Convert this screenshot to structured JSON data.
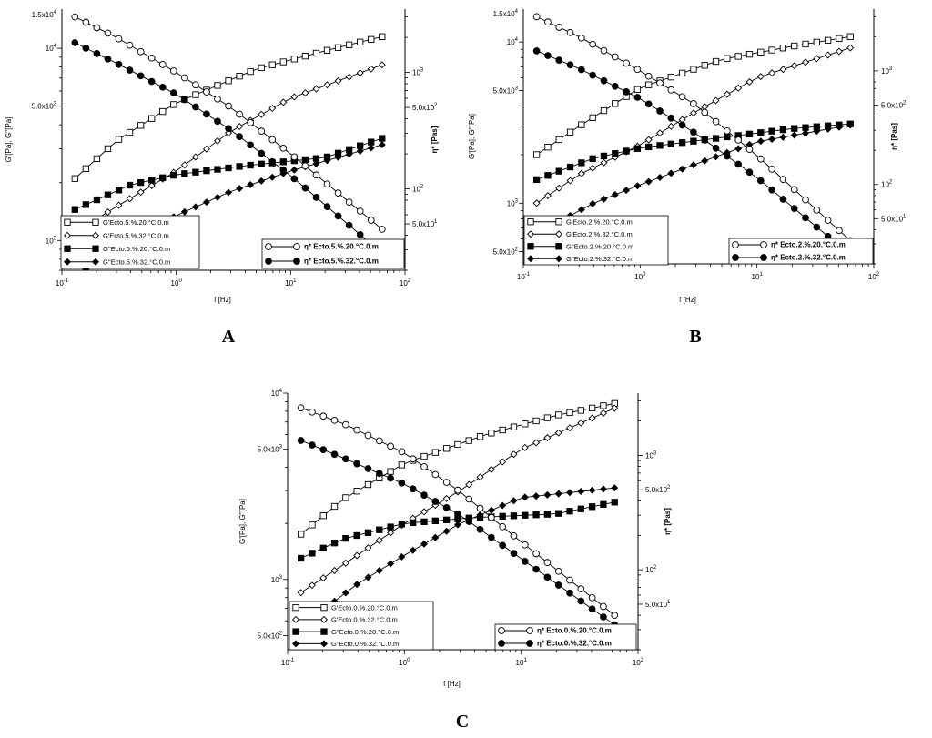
{
  "chart_data": [
    {
      "type": "line",
      "panel_label": "A",
      "xlabel": "f [Hz]",
      "ylabel": "G'[Pa], G''[Pa]",
      "y2label": "η* [Pas]",
      "xscale": "log",
      "yscale": "log",
      "y2scale": "log",
      "xlim": [
        0.1,
        100
      ],
      "ylim": [
        700,
        16000
      ],
      "y2lim": [
        20,
        3500
      ],
      "xticks": [
        {
          "base": "10",
          "exp": "-1",
          "value": 0.1
        },
        {
          "base": "10",
          "exp": "0",
          "value": 1
        },
        {
          "base": "10",
          "exp": "1",
          "value": 10
        },
        {
          "base": "10",
          "exp": "2",
          "value": 100
        }
      ],
      "yticks": [
        {
          "base": "1.5x10",
          "exp": "4",
          "value": 15000
        },
        {
          "base": "10",
          "exp": "4",
          "value": 10000
        },
        {
          "base": "5.0x10",
          "exp": "3",
          "value": 5000
        },
        {
          "base": "10",
          "exp": "3",
          "value": 1000
        }
      ],
      "y2ticks": [
        {
          "base": "10",
          "exp": "3",
          "value": 1000
        },
        {
          "base": "5.0x10",
          "exp": "2",
          "value": 500
        },
        {
          "base": "10",
          "exp": "2",
          "value": 100
        },
        {
          "base": "5.0x10",
          "exp": "1",
          "value": 50
        }
      ],
      "legend_left": [
        "G'Ecto.5.%.20.°C.0.m",
        "G'Ecto.5.%.32.°C.0.m",
        "G''Ecto.5.%.20.°C.0.m",
        "G''Ecto.5.%.32.°C.0.m"
      ],
      "legend_right": [
        "η* Ecto.5.%.20.°C.0.m",
        "η* Ecto.5.%.32.°C.0.m"
      ],
      "legend_left_position": "bottom-left",
      "legend_right_position": "bottom-right",
      "grid": false,
      "series": [
        {
          "name": "G'Ecto.5.%.20.°C.0.m",
          "axis": "left",
          "marker": "square-open",
          "f_range": [
            0.13,
            63
          ],
          "points": 29,
          "path": [
            [
              0.13,
              2100
            ],
            [
              0.3,
              3300
            ],
            [
              1,
              5200
            ],
            [
              5,
              7800
            ],
            [
              20,
              9700
            ],
            [
              63,
              11500
            ]
          ]
        },
        {
          "name": "G'Ecto.5.%.32.°C.0.m",
          "axis": "left",
          "marker": "diamond-open",
          "f_range": [
            0.13,
            63
          ],
          "points": 29,
          "path": [
            [
              0.13,
              1100
            ],
            [
              0.3,
              1500
            ],
            [
              1,
              2300
            ],
            [
              3,
              3700
            ],
            [
              10,
              5500
            ],
            [
              63,
              8200
            ]
          ]
        },
        {
          "name": "G''Ecto.5.%.20.°C.0.m",
          "axis": "left",
          "marker": "square-filled",
          "f_range": [
            0.13,
            63
          ],
          "points": 29,
          "path": [
            [
              0.13,
              1450
            ],
            [
              0.4,
              1950
            ],
            [
              1,
              2200
            ],
            [
              4,
              2450
            ],
            [
              20,
              2700
            ],
            [
              63,
              3400
            ]
          ]
        },
        {
          "name": "G''Ecto.5.%.32.°C.0.m",
          "axis": "left",
          "marker": "diamond-filled",
          "f_range": [
            0.13,
            63
          ],
          "points": 29,
          "path": [
            [
              0.13,
              650
            ],
            [
              0.4,
              1000
            ],
            [
              1,
              1350
            ],
            [
              3,
              1800
            ],
            [
              10,
              2300
            ],
            [
              63,
              3150
            ]
          ]
        },
        {
          "name": "η* Ecto.5.%.20.°C.0.m",
          "axis": "right",
          "marker": "circle-open",
          "f_range": [
            0.13,
            63
          ],
          "points": 29,
          "path": [
            [
              0.13,
              3000
            ],
            [
              0.3,
              2000
            ],
            [
              1,
              1000
            ],
            [
              3,
              500
            ],
            [
              10,
              200
            ],
            [
              63,
              45
            ]
          ]
        },
        {
          "name": "η* Ecto.5.%.32.°C.0.m",
          "axis": "right",
          "marker": "circle-filled",
          "f_range": [
            0.13,
            63
          ],
          "points": 29,
          "path": [
            [
              0.13,
              1800
            ],
            [
              0.3,
              1200
            ],
            [
              1,
              650
            ],
            [
              3,
              320
            ],
            [
              10,
              130
            ],
            [
              63,
              28
            ]
          ]
        }
      ]
    },
    {
      "type": "line",
      "panel_label": "B",
      "xlabel": "f [Hz]",
      "ylabel": "G'[Pa], G''[Pa]",
      "y2label": "η* [Pas]",
      "xscale": "log",
      "yscale": "log",
      "y2scale": "log",
      "xlim": [
        0.1,
        100
      ],
      "ylim": [
        420,
        16000
      ],
      "y2lim": [
        20,
        3500
      ],
      "xticks": [
        {
          "base": "10",
          "exp": "-1",
          "value": 0.1
        },
        {
          "base": "10",
          "exp": "0",
          "value": 1
        },
        {
          "base": "10",
          "exp": "1",
          "value": 10
        },
        {
          "base": "10",
          "exp": "2",
          "value": 100
        }
      ],
      "yticks": [
        {
          "base": "1.5x10",
          "exp": "4",
          "value": 15000
        },
        {
          "base": "10",
          "exp": "4",
          "value": 10000
        },
        {
          "base": "5.0x10",
          "exp": "3",
          "value": 5000
        },
        {
          "base": "10",
          "exp": "3",
          "value": 1000
        },
        {
          "base": "5.0x10",
          "exp": "2",
          "value": 500
        }
      ],
      "y2ticks": [
        {
          "base": "10",
          "exp": "3",
          "value": 1000
        },
        {
          "base": "5.0x10",
          "exp": "2",
          "value": 500
        },
        {
          "base": "10",
          "exp": "2",
          "value": 100
        },
        {
          "base": "5.0x10",
          "exp": "1",
          "value": 50
        }
      ],
      "legend_left": [
        "G'Ecto.2.%.20.°C.0.m",
        "G'Ecto.2.%.32.°C.0.m",
        "G''Ecto.2.%.20.°C.0.m",
        "G''Ecto.2.%.32.°C.0.m"
      ],
      "legend_right": [
        "η* Ecto.2.%.20.°C.0.m",
        "η* Ecto.2.%.32.°C.0.m"
      ],
      "legend_left_position": "bottom-left",
      "legend_right_position": "bottom-right",
      "grid": false,
      "series": [
        {
          "name": "G'Ecto.2.%.20.°C.0.m",
          "axis": "left",
          "marker": "square-open",
          "f_range": [
            0.13,
            63
          ],
          "points": 29,
          "path": [
            [
              0.13,
              2000
            ],
            [
              0.3,
              3000
            ],
            [
              1,
              5200
            ],
            [
              5,
              7800
            ],
            [
              20,
              9400
            ],
            [
              63,
              10800
            ]
          ]
        },
        {
          "name": "G'Ecto.2.%.32.°C.0.m",
          "axis": "left",
          "marker": "diamond-open",
          "f_range": [
            0.13,
            63
          ],
          "points": 29,
          "path": [
            [
              0.13,
              1000
            ],
            [
              0.3,
              1500
            ],
            [
              1,
              2300
            ],
            [
              3,
              3700
            ],
            [
              10,
              6000
            ],
            [
              63,
              9200
            ]
          ]
        },
        {
          "name": "G''Ecto.2.%.20.°C.0.m",
          "axis": "left",
          "marker": "square-filled",
          "f_range": [
            0.13,
            63
          ],
          "points": 29,
          "path": [
            [
              0.13,
              1400
            ],
            [
              0.4,
              1900
            ],
            [
              1,
              2200
            ],
            [
              4,
              2500
            ],
            [
              20,
              2900
            ],
            [
              63,
              3100
            ]
          ]
        },
        {
          "name": "G''Ecto.2.%.32.°C.0.m",
          "axis": "left",
          "marker": "diamond-filled",
          "f_range": [
            0.13,
            63
          ],
          "points": 29,
          "path": [
            [
              0.13,
              650
            ],
            [
              0.4,
              1000
            ],
            [
              1,
              1300
            ],
            [
              3,
              1750
            ],
            [
              10,
              2400
            ],
            [
              63,
              3050
            ]
          ]
        },
        {
          "name": "η* Ecto.2.%.20.°C.0.m",
          "axis": "right",
          "marker": "circle-open",
          "f_range": [
            0.13,
            63
          ],
          "points": 29,
          "path": [
            [
              0.13,
              3000
            ],
            [
              0.3,
              2000
            ],
            [
              1,
              1000
            ],
            [
              3,
              500
            ],
            [
              10,
              180
            ],
            [
              63,
              32
            ]
          ]
        },
        {
          "name": "η* Ecto.2.%.32.°C.0.m",
          "axis": "right",
          "marker": "circle-filled",
          "f_range": [
            0.13,
            63
          ],
          "points": 29,
          "path": [
            [
              0.13,
              1500
            ],
            [
              0.3,
              1050
            ],
            [
              1,
              570
            ],
            [
              3,
              280
            ],
            [
              10,
              115
            ],
            [
              63,
              24
            ]
          ]
        }
      ]
    },
    {
      "type": "line",
      "panel_label": "C",
      "xlabel": "f [Hz]",
      "ylabel": "G'[Pa], G''[Pa]",
      "y2label": "η* [Pas]",
      "xscale": "log",
      "yscale": "log",
      "y2scale": "log",
      "xlim": [
        0.1,
        100
      ],
      "ylim": [
        420,
        10000
      ],
      "y2lim": [
        20,
        3500
      ],
      "xticks": [
        {
          "base": "10",
          "exp": "-1",
          "value": 0.1
        },
        {
          "base": "10",
          "exp": "0",
          "value": 1
        },
        {
          "base": "10",
          "exp": "1",
          "value": 10
        },
        {
          "base": "10",
          "exp": "2",
          "value": 100
        }
      ],
      "yticks": [
        {
          "base": "10",
          "exp": "4",
          "value": 10000
        },
        {
          "base": "5.0x10",
          "exp": "3",
          "value": 5000
        },
        {
          "base": "10",
          "exp": "3",
          "value": 1000
        },
        {
          "base": "5.0x10",
          "exp": "2",
          "value": 500
        }
      ],
      "y2ticks": [
        {
          "base": "10",
          "exp": "3",
          "value": 1000
        },
        {
          "base": "5.0x10",
          "exp": "2",
          "value": 500
        },
        {
          "base": "10",
          "exp": "2",
          "value": 100
        },
        {
          "base": "5.0x10",
          "exp": "1",
          "value": 50
        }
      ],
      "legend_left": [
        "G'Ecto.0.%.20.°C.0.m",
        "G'Ecto.0.%.32.°C.0.m",
        "G''Ecto.0.%.20.°C.0.m",
        "G''Ecto.0.%.32.°C.0.m"
      ],
      "legend_right": [
        "η* Ecto.0.%.20.°C.0.m",
        "η* Ecto.0.%.32.°C.0.m"
      ],
      "legend_left_position": "bottom-left",
      "legend_right_position": "bottom-right",
      "grid": false,
      "series": [
        {
          "name": "G'Ecto.0.%.20.°C.0.m",
          "axis": "left",
          "marker": "square-open",
          "f_range": [
            0.13,
            63
          ],
          "points": 29,
          "path": [
            [
              0.13,
              1750
            ],
            [
              0.3,
              2700
            ],
            [
              1,
              4200
            ],
            [
              5,
              6000
            ],
            [
              20,
              7600
            ],
            [
              63,
              8800
            ]
          ]
        },
        {
          "name": "G'Ecto.0.%.32.°C.0.m",
          "axis": "left",
          "marker": "diamond-open",
          "f_range": [
            0.13,
            63
          ],
          "points": 29,
          "path": [
            [
              0.13,
              850
            ],
            [
              0.3,
              1200
            ],
            [
              1,
              2000
            ],
            [
              3,
              3000
            ],
            [
              10,
              5000
            ],
            [
              63,
              8300
            ]
          ]
        },
        {
          "name": "G''Ecto.0.%.20.°C.0.m",
          "axis": "left",
          "marker": "square-filled",
          "f_range": [
            0.13,
            63
          ],
          "points": 29,
          "path": [
            [
              0.13,
              1300
            ],
            [
              0.3,
              1650
            ],
            [
              1,
              2000
            ],
            [
              4,
              2150
            ],
            [
              20,
              2250
            ],
            [
              63,
              2600
            ]
          ]
        },
        {
          "name": "G''Ecto.0.%.32.°C.0.m",
          "axis": "left",
          "marker": "diamond-filled",
          "f_range": [
            0.13,
            63
          ],
          "points": 29,
          "path": [
            [
              0.13,
              560
            ],
            [
              0.4,
              950
            ],
            [
              1,
              1350
            ],
            [
              3,
              2000
            ],
            [
              10,
              2750
            ],
            [
              63,
              3100
            ]
          ]
        },
        {
          "name": "η* Ecto.0.%.20.°C.0.m",
          "axis": "right",
          "marker": "circle-open",
          "f_range": [
            0.13,
            63
          ],
          "points": 29,
          "path": [
            [
              0.13,
              2600
            ],
            [
              0.3,
              1900
            ],
            [
              1,
              1050
            ],
            [
              3,
              480
            ],
            [
              10,
              175
            ],
            [
              63,
              40
            ]
          ]
        },
        {
          "name": "η* Ecto.0.%.32.°C.0.m",
          "axis": "right",
          "marker": "circle-filled",
          "f_range": [
            0.13,
            63
          ],
          "points": 29,
          "path": [
            [
              0.13,
              1350
            ],
            [
              0.3,
              950
            ],
            [
              1,
              560
            ],
            [
              3,
              300
            ],
            [
              10,
              125
            ],
            [
              63,
              33
            ]
          ]
        }
      ]
    }
  ]
}
